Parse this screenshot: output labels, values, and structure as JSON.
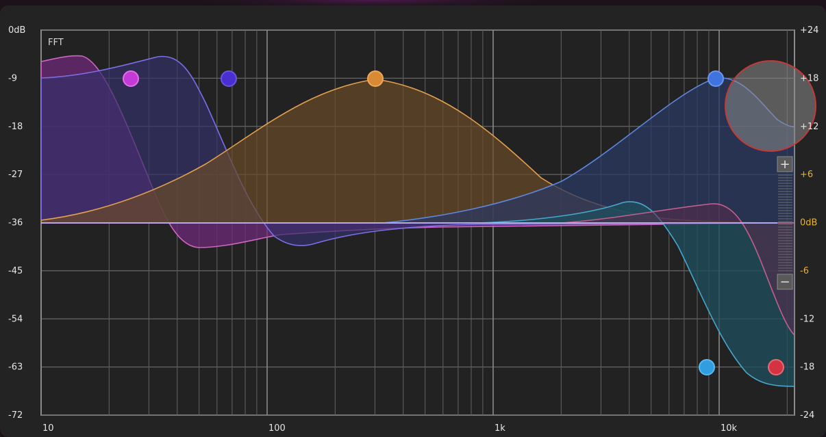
{
  "eq": {
    "fft_label": "FFT",
    "left_axis_labels": [
      "0dB",
      "-9",
      "-18",
      "-27",
      "-36",
      "-45",
      "-54",
      "-63",
      "-72"
    ],
    "right_axis_labels": [
      "+24",
      "+18",
      "+12",
      "+6",
      "0dB",
      "-6",
      "-12",
      "-18",
      "-24"
    ],
    "right_axis_gold_labels": [
      "+6",
      "0dB",
      "-6"
    ],
    "freq_labels": [
      "10",
      "100",
      "1k",
      "10k"
    ],
    "zoom": {
      "plus": "+",
      "minus": "−"
    },
    "bands": [
      {
        "name": "band-1",
        "freq_hz": 12,
        "type": "bell-boost",
        "color": "#c84fb0"
      },
      {
        "name": "band-2",
        "freq_hz": 24,
        "type": "lowpass",
        "color": "#c33bd6"
      },
      {
        "name": "band-3",
        "freq_hz": 63,
        "type": "lowpass",
        "color": "#5a3ad8"
      },
      {
        "name": "band-4",
        "freq_hz": 290,
        "type": "bell",
        "color": "#d98a34"
      },
      {
        "name": "band-5",
        "freq_hz": 9500,
        "type": "bell",
        "color": "#3f73e0"
      },
      {
        "name": "band-6",
        "freq_hz": 8500,
        "type": "lowpass",
        "color": "#2f9fe0"
      },
      {
        "name": "band-7",
        "freq_hz": 17500,
        "type": "lowpass",
        "color": "#d43442"
      }
    ],
    "colors": {
      "background": "#232323",
      "frame": "#8c8c8c",
      "grid": "#6a6a6a",
      "gold": "#e6b23a",
      "purple_fill": "#6e2a78",
      "violet_fill": "#35306a",
      "orange_fill": "#6a4a28",
      "blue_fill": "#2b3a62",
      "teal_fill": "#1f4e5c",
      "selection": "#7a7a7a"
    }
  }
}
